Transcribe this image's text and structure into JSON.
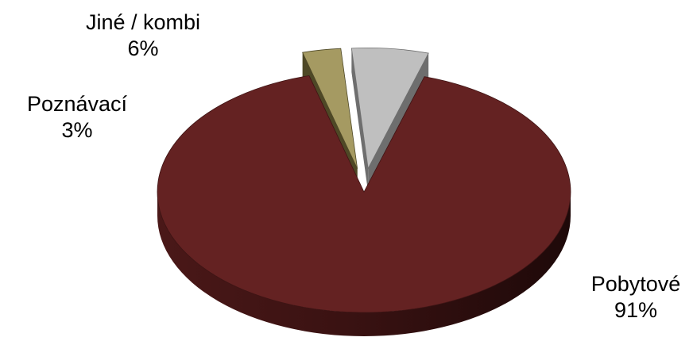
{
  "chart_data": {
    "type": "pie",
    "title": "",
    "slices": [
      {
        "label": "Pobytové",
        "value": 91,
        "value_label": "91%",
        "color": "#642222",
        "side_color": "#3e1414"
      },
      {
        "label": "Poznávací",
        "value": 3,
        "value_label": "3%",
        "color": "#a59a62",
        "side_color": "#4e4826"
      },
      {
        "label": "Jiné / kombi",
        "value": 6,
        "value_label": "6%",
        "color": "#bfbfbf",
        "side_color": "#6e6e6e"
      }
    ],
    "legend": "none",
    "style": "3d-exploded"
  }
}
